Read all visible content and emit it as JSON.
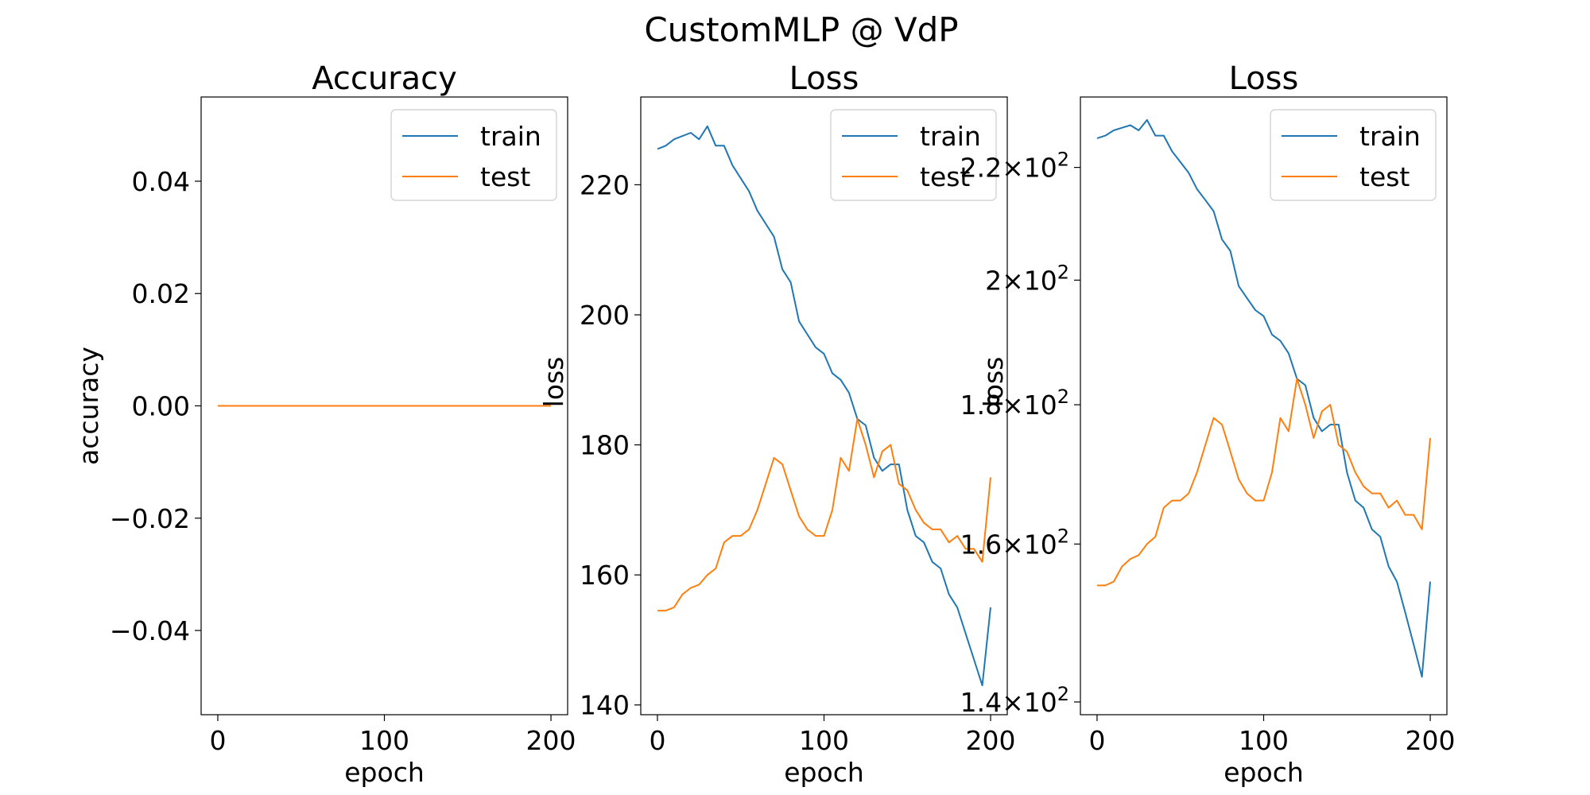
{
  "figure": {
    "title": "CustomMLP @ VdP"
  },
  "colors": {
    "train": "#1f77b4",
    "test": "#ff7f0e",
    "axis": "#000000",
    "background": "#ffffff"
  },
  "chart_data": [
    {
      "type": "line",
      "title": "Accuracy",
      "xlabel": "epoch",
      "ylabel": "accuracy",
      "yscale": "linear",
      "xlim": [
        -10,
        210
      ],
      "ylim": [
        -0.055,
        0.055
      ],
      "xticks": [
        0,
        100,
        200
      ],
      "xtick_labels": [
        "0",
        "100",
        "200"
      ],
      "yticks": [
        -0.04,
        -0.02,
        0.0,
        0.02,
        0.04
      ],
      "ytick_labels": [
        "−0.04",
        "−0.02",
        "0.00",
        "0.02",
        "0.04"
      ],
      "grid": false,
      "legend": {
        "position": "upper right",
        "entries": [
          "train",
          "test"
        ]
      },
      "series": [
        {
          "name": "train",
          "x": [
            0,
            200
          ],
          "y": [
            0,
            0
          ]
        },
        {
          "name": "test",
          "x": [
            0,
            200
          ],
          "y": [
            0,
            0
          ]
        }
      ]
    },
    {
      "type": "line",
      "title": "Loss",
      "xlabel": "epoch",
      "ylabel": "loss",
      "yscale": "linear",
      "xlim": [
        -10,
        210
      ],
      "ylim": [
        138.5,
        233.5
      ],
      "xticks": [
        0,
        100,
        200
      ],
      "xtick_labels": [
        "0",
        "100",
        "200"
      ],
      "yticks": [
        140,
        160,
        180,
        200,
        220
      ],
      "ytick_labels": [
        "140",
        "160",
        "180",
        "200",
        "220"
      ],
      "grid": false,
      "legend": {
        "position": "upper right",
        "entries": [
          "train",
          "test"
        ]
      },
      "series": [
        {
          "name": "train",
          "x": [
            0,
            5,
            10,
            15,
            20,
            25,
            30,
            35,
            40,
            45,
            50,
            55,
            60,
            65,
            70,
            75,
            80,
            85,
            90,
            95,
            100,
            105,
            110,
            115,
            120,
            125,
            130,
            135,
            140,
            145,
            150,
            155,
            160,
            165,
            170,
            175,
            180,
            185,
            190,
            195,
            200
          ],
          "y": [
            225.5,
            226,
            227,
            227.5,
            228,
            227,
            229,
            226,
            226,
            223,
            221,
            219,
            216,
            214,
            212,
            207,
            205,
            199,
            197,
            195,
            194,
            191,
            190,
            188,
            184,
            183,
            178,
            176,
            177,
            177,
            170,
            166,
            165,
            162,
            161,
            157,
            155,
            151,
            147,
            143,
            155
          ]
        },
        {
          "name": "test",
          "x": [
            0,
            5,
            10,
            15,
            20,
            25,
            30,
            35,
            40,
            45,
            50,
            55,
            60,
            65,
            70,
            75,
            80,
            85,
            90,
            95,
            100,
            105,
            110,
            115,
            120,
            125,
            130,
            135,
            140,
            145,
            150,
            155,
            160,
            165,
            170,
            175,
            180,
            185,
            190,
            195,
            200
          ],
          "y": [
            154.5,
            154.5,
            155,
            157,
            158,
            158.5,
            160,
            161,
            165,
            166,
            166,
            167,
            170,
            174,
            178,
            177,
            173,
            169,
            167,
            166,
            166,
            170,
            178,
            176,
            184,
            180,
            175,
            179,
            180,
            174,
            173,
            170,
            168,
            167,
            167,
            165,
            166,
            164,
            164,
            162,
            175
          ]
        }
      ]
    },
    {
      "type": "line",
      "title": "Loss",
      "xlabel": "epoch",
      "ylabel": "loss",
      "yscale": "log",
      "xlim": [
        -10,
        210
      ],
      "ylim": [
        138.5,
        233.5
      ],
      "xticks": [
        0,
        100,
        200
      ],
      "xtick_labels": [
        "0",
        "100",
        "200"
      ],
      "yticks": [
        140,
        160,
        180,
        200,
        220
      ],
      "ytick_labels": [
        {
          "mantissa": "1.4",
          "exponent": "2"
        },
        {
          "mantissa": "1.6",
          "exponent": "2"
        },
        {
          "mantissa": "1.8",
          "exponent": "2"
        },
        {
          "mantissa": "2",
          "exponent": "2"
        },
        {
          "mantissa": "2.2",
          "exponent": "2"
        }
      ],
      "grid": false,
      "legend": {
        "position": "upper right",
        "entries": [
          "train",
          "test"
        ]
      },
      "series": [
        {
          "name": "train",
          "x": [
            0,
            5,
            10,
            15,
            20,
            25,
            30,
            35,
            40,
            45,
            50,
            55,
            60,
            65,
            70,
            75,
            80,
            85,
            90,
            95,
            100,
            105,
            110,
            115,
            120,
            125,
            130,
            135,
            140,
            145,
            150,
            155,
            160,
            165,
            170,
            175,
            180,
            185,
            190,
            195,
            200
          ],
          "y": [
            225.5,
            226,
            227,
            227.5,
            228,
            227,
            229,
            226,
            226,
            223,
            221,
            219,
            216,
            214,
            212,
            207,
            205,
            199,
            197,
            195,
            194,
            191,
            190,
            188,
            184,
            183,
            178,
            176,
            177,
            177,
            170,
            166,
            165,
            162,
            161,
            157,
            155,
            151,
            147,
            143,
            155
          ]
        },
        {
          "name": "test",
          "x": [
            0,
            5,
            10,
            15,
            20,
            25,
            30,
            35,
            40,
            45,
            50,
            55,
            60,
            65,
            70,
            75,
            80,
            85,
            90,
            95,
            100,
            105,
            110,
            115,
            120,
            125,
            130,
            135,
            140,
            145,
            150,
            155,
            160,
            165,
            170,
            175,
            180,
            185,
            190,
            195,
            200
          ],
          "y": [
            154.5,
            154.5,
            155,
            157,
            158,
            158.5,
            160,
            161,
            165,
            166,
            166,
            167,
            170,
            174,
            178,
            177,
            173,
            169,
            167,
            166,
            166,
            170,
            178,
            176,
            184,
            180,
            175,
            179,
            180,
            174,
            173,
            170,
            168,
            167,
            167,
            165,
            166,
            164,
            164,
            162,
            175
          ]
        }
      ]
    }
  ]
}
